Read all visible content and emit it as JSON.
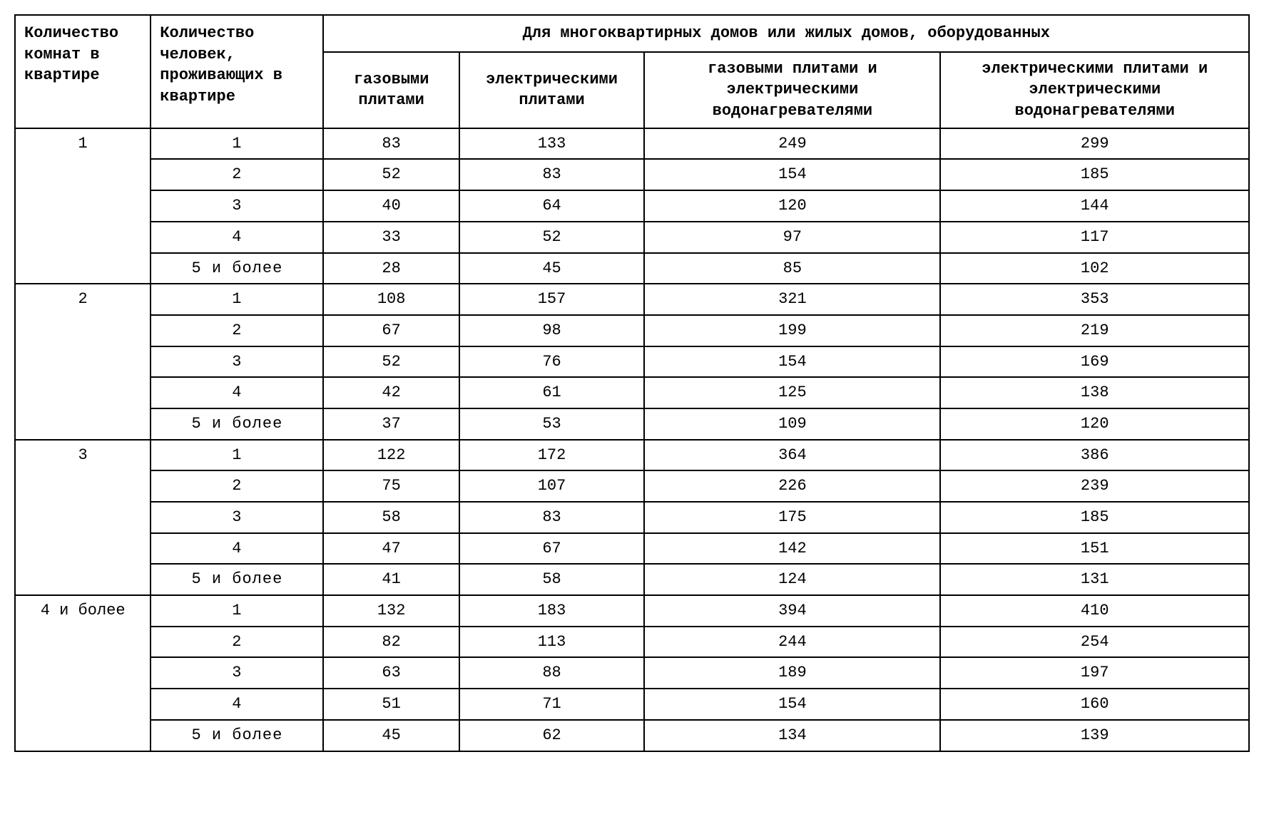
{
  "table": {
    "type": "table",
    "background_color": "#ffffff",
    "border_color": "#000000",
    "text_color": "#000000",
    "font_family": "Courier New, monospace",
    "font_size_pt": 16,
    "header_font_weight": "bold",
    "columns": {
      "rooms": {
        "label": "Количество комнат в квартире",
        "width_pct": 11,
        "align": "center"
      },
      "people": {
        "label": "Количество человек, проживающих в квартире",
        "width_pct": 14,
        "align": "center"
      },
      "equipped_header": {
        "label": "Для многоквартирных домов или жилых домов, оборудованных"
      },
      "gas": {
        "label": "газовыми плитами",
        "width_pct": 11,
        "align": "center"
      },
      "elec": {
        "label": "электрическими плитами",
        "width_pct": 15,
        "align": "center"
      },
      "gas_heater": {
        "label": "газовыми плитами и электрическими водонагревателями",
        "width_pct": 24,
        "align": "center"
      },
      "elec_heater": {
        "label": "электрическими плитами и электрическими водонагревателями",
        "width_pct": 25,
        "align": "center"
      }
    },
    "groups": [
      {
        "rooms": "1",
        "rows": [
          {
            "people": "1",
            "gas": "83",
            "elec": "133",
            "gas_heater": "249",
            "elec_heater": "299"
          },
          {
            "people": "2",
            "gas": "52",
            "elec": "83",
            "gas_heater": "154",
            "elec_heater": "185"
          },
          {
            "people": "3",
            "gas": "40",
            "elec": "64",
            "gas_heater": "120",
            "elec_heater": "144"
          },
          {
            "people": "4",
            "gas": "33",
            "elec": "52",
            "gas_heater": "97",
            "elec_heater": "117"
          },
          {
            "people": "5 и более",
            "gas": "28",
            "elec": "45",
            "gas_heater": "85",
            "elec_heater": "102"
          }
        ]
      },
      {
        "rooms": "2",
        "rows": [
          {
            "people": "1",
            "gas": "108",
            "elec": "157",
            "gas_heater": "321",
            "elec_heater": "353"
          },
          {
            "people": "2",
            "gas": "67",
            "elec": "98",
            "gas_heater": "199",
            "elec_heater": "219"
          },
          {
            "people": "3",
            "gas": "52",
            "elec": "76",
            "gas_heater": "154",
            "elec_heater": "169"
          },
          {
            "people": "4",
            "gas": "42",
            "elec": "61",
            "gas_heater": "125",
            "elec_heater": "138"
          },
          {
            "people": "5 и более",
            "gas": "37",
            "elec": "53",
            "gas_heater": "109",
            "elec_heater": "120"
          }
        ]
      },
      {
        "rooms": "3",
        "rows": [
          {
            "people": "1",
            "gas": "122",
            "elec": "172",
            "gas_heater": "364",
            "elec_heater": "386"
          },
          {
            "people": "2",
            "gas": "75",
            "elec": "107",
            "gas_heater": "226",
            "elec_heater": "239"
          },
          {
            "people": "3",
            "gas": "58",
            "elec": "83",
            "gas_heater": "175",
            "elec_heater": "185"
          },
          {
            "people": "4",
            "gas": "47",
            "elec": "67",
            "gas_heater": "142",
            "elec_heater": "151"
          },
          {
            "people": "5 и более",
            "gas": "41",
            "elec": "58",
            "gas_heater": "124",
            "elec_heater": "131"
          }
        ]
      },
      {
        "rooms": "4 и более",
        "rows": [
          {
            "people": "1",
            "gas": "132",
            "elec": "183",
            "gas_heater": "394",
            "elec_heater": "410"
          },
          {
            "people": "2",
            "gas": "82",
            "elec": "113",
            "gas_heater": "244",
            "elec_heater": "254"
          },
          {
            "people": "3",
            "gas": "63",
            "elec": "88",
            "gas_heater": "189",
            "elec_heater": "197"
          },
          {
            "people": "4",
            "gas": "51",
            "elec": "71",
            "gas_heater": "154",
            "elec_heater": "160"
          },
          {
            "people": "5 и более",
            "gas": "45",
            "elec": "62",
            "gas_heater": "134",
            "elec_heater": "139"
          }
        ]
      }
    ]
  }
}
